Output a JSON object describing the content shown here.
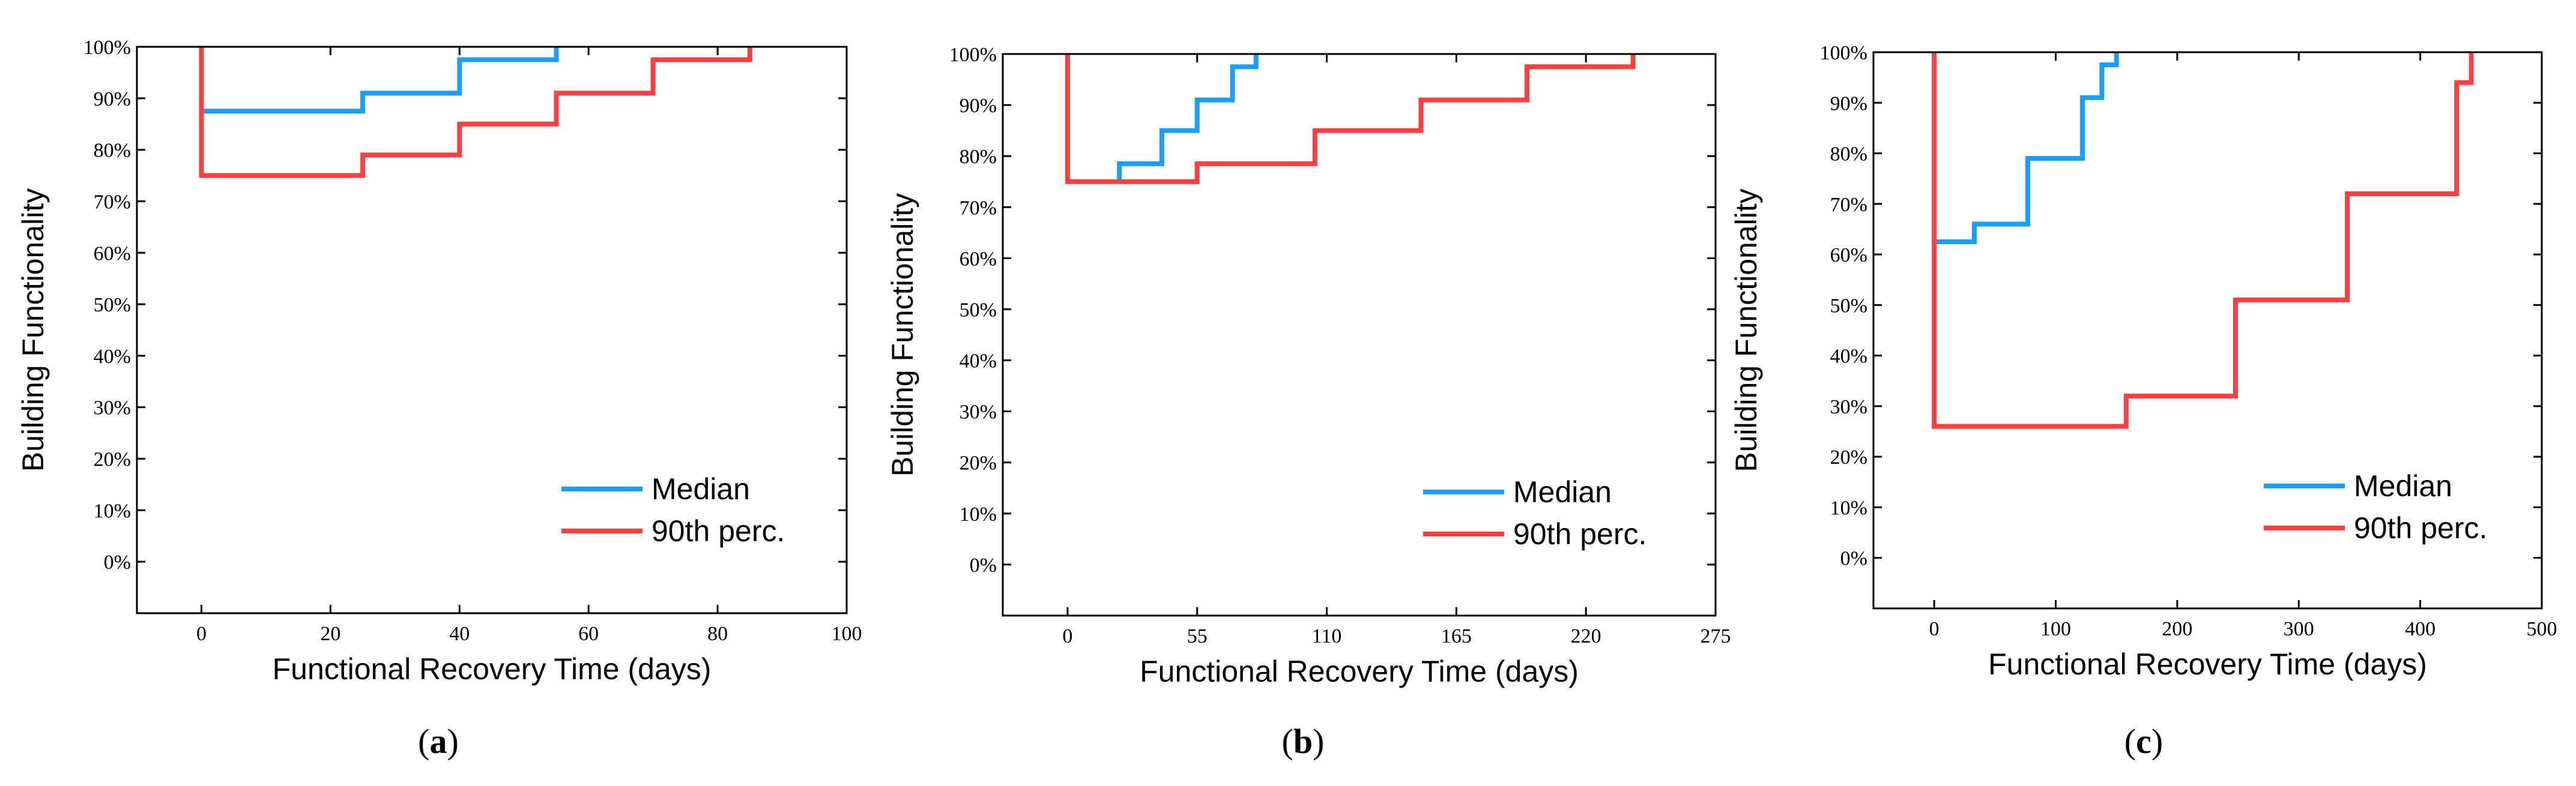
{
  "colors": {
    "median": "#1a9fff",
    "perc90": "#ff3f3f"
  },
  "chart_data": [
    {
      "type": "line",
      "panel": "a",
      "caption": "(a)",
      "xlabel": "Functional Recovery Time (days)",
      "ylabel": "Building Functionality",
      "xlim": [
        -10,
        100
      ],
      "ylim": [
        -10,
        100
      ],
      "xticks": [
        0,
        20,
        40,
        60,
        80,
        100
      ],
      "xtick_labels": [
        "0",
        "20",
        "40",
        "60",
        "80",
        "100"
      ],
      "yticks": [
        0,
        10,
        20,
        30,
        40,
        50,
        60,
        70,
        80,
        90,
        100
      ],
      "ytick_labels": [
        "0%",
        "10%",
        "20%",
        "30%",
        "40%",
        "50%",
        "60%",
        "70%",
        "80%",
        "90%",
        "100%"
      ],
      "legend": [
        "Median",
        "90th perc."
      ],
      "series": [
        {
          "name": "Median",
          "x": [
            0,
            0,
            25,
            25,
            40,
            40,
            55,
            55
          ],
          "y": [
            100,
            87.5,
            87.5,
            91,
            91,
            97.5,
            97.5,
            100
          ]
        },
        {
          "name": "90th perc.",
          "x": [
            0,
            0,
            25,
            25,
            40,
            40,
            55,
            55,
            70,
            70,
            85,
            85
          ],
          "y": [
            100,
            75,
            75,
            79,
            79,
            85,
            85,
            91,
            91,
            97.5,
            97.5,
            100
          ]
        }
      ]
    },
    {
      "type": "line",
      "panel": "b",
      "caption": "(b)",
      "xlabel": "Functional Recovery Time (days)",
      "ylabel": "Building Functionality",
      "xlim": [
        -27.5,
        275
      ],
      "ylim": [
        -10,
        100
      ],
      "xticks": [
        0,
        55,
        110,
        165,
        220,
        275
      ],
      "xtick_labels": [
        "0",
        "55",
        "110",
        "165",
        "220",
        "275"
      ],
      "yticks": [
        0,
        10,
        20,
        30,
        40,
        50,
        60,
        70,
        80,
        90,
        100
      ],
      "ytick_labels": [
        "0%",
        "10%",
        "20%",
        "30%",
        "40%",
        "50%",
        "60%",
        "70%",
        "80%",
        "90%",
        "100%"
      ],
      "legend": [
        "Median",
        "90th perc."
      ],
      "series": [
        {
          "name": "Median",
          "x": [
            22,
            22,
            40,
            40,
            55,
            55,
            70,
            70,
            80,
            80
          ],
          "y": [
            75,
            78.5,
            78.5,
            85,
            85,
            91,
            91,
            97.5,
            97.5,
            100
          ]
        },
        {
          "name": "90th perc.",
          "x": [
            0,
            0,
            55,
            55,
            105,
            105,
            150,
            150,
            195,
            195,
            240,
            240
          ],
          "y": [
            100,
            75,
            75,
            78.5,
            78.5,
            85,
            85,
            91,
            91,
            97.5,
            97.5,
            100
          ]
        }
      ]
    },
    {
      "type": "line",
      "panel": "c",
      "caption": "(c)",
      "xlabel": "Functional Recovery Time (days)",
      "ylabel": "Building Functionality",
      "xlim": [
        -50,
        500
      ],
      "ylim": [
        -10,
        100
      ],
      "xticks": [
        0,
        100,
        200,
        300,
        400,
        500
      ],
      "xtick_labels": [
        "0",
        "100",
        "200",
        "300",
        "400",
        "500"
      ],
      "yticks": [
        0,
        10,
        20,
        30,
        40,
        50,
        60,
        70,
        80,
        90,
        100
      ],
      "ytick_labels": [
        "0%",
        "10%",
        "20%",
        "30%",
        "40%",
        "50%",
        "60%",
        "70%",
        "80%",
        "90%",
        "100%"
      ],
      "legend": [
        "Median",
        "90th perc."
      ],
      "series": [
        {
          "name": "Median",
          "x": [
            0,
            0,
            33,
            33,
            77,
            77,
            122,
            122,
            138,
            138,
            150,
            150
          ],
          "y": [
            100,
            62.5,
            62.5,
            66,
            66,
            79,
            79,
            91,
            91,
            97.5,
            97.5,
            100
          ]
        },
        {
          "name": "90th perc.",
          "x": [
            0,
            0,
            158,
            158,
            248,
            248,
            340,
            340,
            430,
            430,
            442,
            442
          ],
          "y": [
            100,
            26,
            26,
            32,
            32,
            51,
            51,
            72,
            72,
            94,
            94,
            100
          ]
        }
      ]
    }
  ]
}
